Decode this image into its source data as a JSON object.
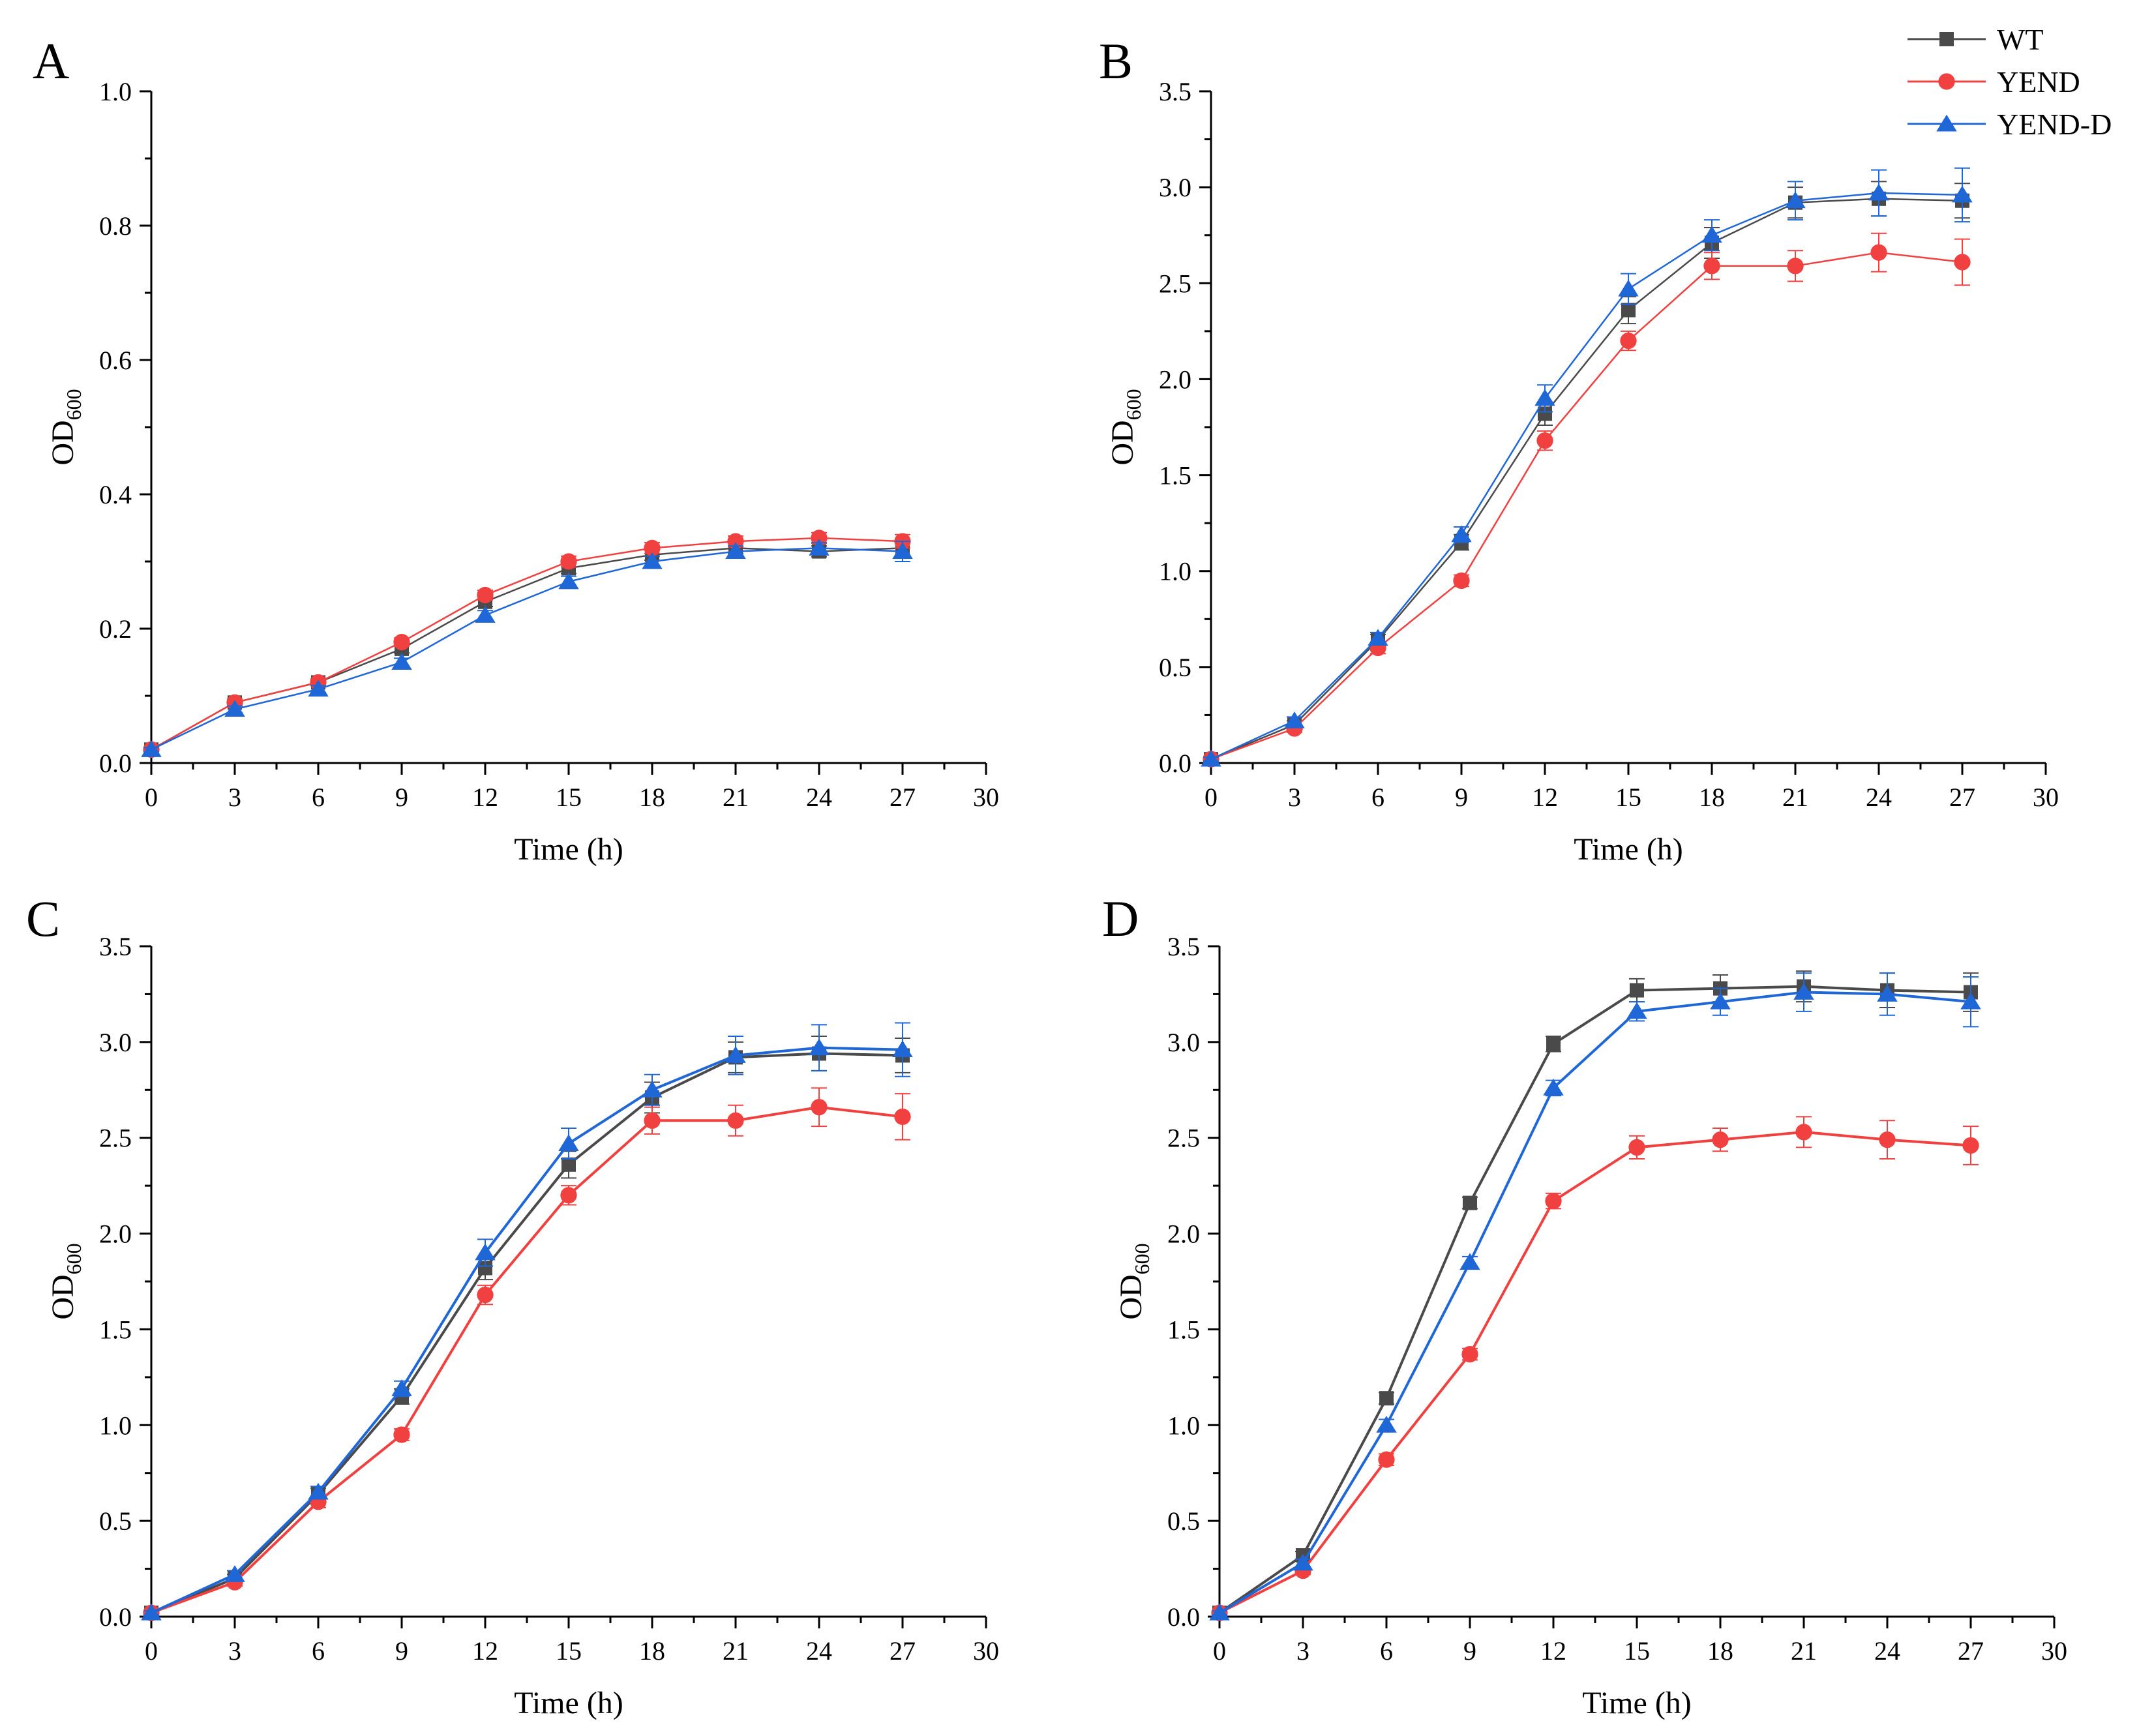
{
  "legend": {
    "entries": [
      {
        "name": "WT",
        "color": "#4a4a4a",
        "marker": "square"
      },
      {
        "name": "YEND",
        "color": "#f04040",
        "marker": "circle"
      },
      {
        "name": "YEND-D",
        "color": "#1f66d6",
        "marker": "triangle"
      }
    ]
  },
  "chart_data": [
    {
      "panel": "A",
      "type": "line",
      "xlabel": "Time (h)",
      "ylabel": "OD",
      "ylabel_sub": "600",
      "xlim": [
        0,
        30
      ],
      "ylim": [
        0,
        1.0
      ],
      "xticks": [
        0,
        3,
        6,
        9,
        12,
        15,
        18,
        21,
        24,
        27,
        30
      ],
      "yticks": [
        0.0,
        0.2,
        0.4,
        0.6,
        0.8,
        1.0
      ],
      "ytick_labels": [
        "0.0",
        "0.2",
        "0.4",
        "0.6",
        "0.8",
        "1.0"
      ],
      "x": [
        0,
        3,
        6,
        9,
        12,
        15,
        18,
        21,
        24,
        27
      ],
      "series": [
        {
          "name": "WT",
          "values": [
            0.02,
            0.09,
            0.12,
            0.17,
            0.24,
            0.29,
            0.31,
            0.32,
            0.315,
            0.32
          ],
          "errors": [
            0.003,
            0.005,
            0.005,
            0.006,
            0.007,
            0.008,
            0.008,
            0.008,
            0.008,
            0.01
          ]
        },
        {
          "name": "YEND",
          "values": [
            0.02,
            0.09,
            0.12,
            0.18,
            0.25,
            0.3,
            0.32,
            0.33,
            0.335,
            0.33
          ],
          "errors": [
            0.003,
            0.005,
            0.005,
            0.006,
            0.007,
            0.008,
            0.008,
            0.008,
            0.008,
            0.01
          ]
        },
        {
          "name": "YEND-D",
          "values": [
            0.02,
            0.08,
            0.11,
            0.15,
            0.22,
            0.27,
            0.3,
            0.315,
            0.32,
            0.315
          ],
          "errors": [
            0.003,
            0.005,
            0.005,
            0.006,
            0.007,
            0.008,
            0.008,
            0.008,
            0.008,
            0.015
          ]
        }
      ]
    },
    {
      "panel": "B",
      "type": "line",
      "xlabel": "Time (h)",
      "ylabel": "OD",
      "ylabel_sub": "600",
      "xlim": [
        0,
        30
      ],
      "ylim": [
        0,
        3.5
      ],
      "xticks": [
        0,
        3,
        6,
        9,
        12,
        15,
        18,
        21,
        24,
        27,
        30
      ],
      "yticks": [
        0.0,
        0.5,
        1.0,
        1.5,
        2.0,
        2.5,
        3.0,
        3.5
      ],
      "ytick_labels": [
        "0.0",
        "0.5",
        "1.0",
        "1.5",
        "2.0",
        "2.5",
        "3.0",
        "3.5"
      ],
      "x": [
        0,
        3,
        6,
        9,
        12,
        15,
        18,
        21,
        24,
        27
      ],
      "series": [
        {
          "name": "WT",
          "values": [
            0.02,
            0.2,
            0.64,
            1.15,
            1.82,
            2.36,
            2.71,
            2.92,
            2.94,
            2.93
          ],
          "errors": [
            0.01,
            0.02,
            0.03,
            0.04,
            0.06,
            0.07,
            0.08,
            0.08,
            0.09,
            0.09
          ]
        },
        {
          "name": "YEND",
          "values": [
            0.02,
            0.18,
            0.6,
            0.95,
            1.68,
            2.2,
            2.59,
            2.59,
            2.66,
            2.61
          ],
          "errors": [
            0.01,
            0.02,
            0.03,
            0.03,
            0.05,
            0.05,
            0.07,
            0.08,
            0.1,
            0.12
          ]
        },
        {
          "name": "YEND-D",
          "values": [
            0.02,
            0.22,
            0.65,
            1.19,
            1.9,
            2.47,
            2.75,
            2.93,
            2.97,
            2.96
          ],
          "errors": [
            0.01,
            0.02,
            0.03,
            0.04,
            0.07,
            0.08,
            0.08,
            0.1,
            0.12,
            0.14
          ]
        }
      ]
    },
    {
      "panel": "C",
      "type": "line",
      "xlabel": "Time (h)",
      "ylabel": "OD",
      "ylabel_sub": "600",
      "xlim": [
        0,
        30
      ],
      "ylim": [
        0,
        3.5
      ],
      "xticks": [
        0,
        3,
        6,
        9,
        12,
        15,
        18,
        21,
        24,
        27,
        30
      ],
      "yticks": [
        0.0,
        0.5,
        1.0,
        1.5,
        2.0,
        2.5,
        3.0,
        3.5
      ],
      "ytick_labels": [
        "0.0",
        "0.5",
        "1.0",
        "1.5",
        "2.0",
        "2.5",
        "3.0",
        "3.5"
      ],
      "x": [
        0,
        3,
        6,
        9,
        12,
        15,
        18,
        21,
        24,
        27
      ],
      "series": [
        {
          "name": "WT",
          "values": [
            0.02,
            0.2,
            0.64,
            1.15,
            1.82,
            2.36,
            2.71,
            2.92,
            2.94,
            2.93
          ],
          "errors": [
            0.01,
            0.02,
            0.03,
            0.04,
            0.06,
            0.07,
            0.08,
            0.08,
            0.09,
            0.09
          ]
        },
        {
          "name": "YEND",
          "values": [
            0.02,
            0.18,
            0.6,
            0.95,
            1.68,
            2.2,
            2.59,
            2.59,
            2.66,
            2.61
          ],
          "errors": [
            0.01,
            0.02,
            0.03,
            0.03,
            0.05,
            0.05,
            0.07,
            0.08,
            0.1,
            0.12
          ]
        },
        {
          "name": "YEND-D",
          "values": [
            0.02,
            0.22,
            0.65,
            1.19,
            1.9,
            2.47,
            2.75,
            2.93,
            2.97,
            2.96
          ],
          "errors": [
            0.01,
            0.02,
            0.03,
            0.04,
            0.07,
            0.08,
            0.08,
            0.1,
            0.12,
            0.14
          ]
        }
      ]
    },
    {
      "panel": "D",
      "type": "line",
      "xlabel": "Time (h)",
      "ylabel": "OD",
      "ylabel_sub": "600",
      "xlim": [
        0,
        30
      ],
      "ylim": [
        0,
        3.5
      ],
      "xticks": [
        0,
        3,
        6,
        9,
        12,
        15,
        18,
        21,
        24,
        27,
        30
      ],
      "yticks": [
        0.0,
        0.5,
        1.0,
        1.5,
        2.0,
        2.5,
        3.0,
        3.5
      ],
      "ytick_labels": [
        "0.0",
        "0.5",
        "1.0",
        "1.5",
        "2.0",
        "2.5",
        "3.0",
        "3.5"
      ],
      "x": [
        0,
        3,
        6,
        9,
        12,
        15,
        18,
        21,
        24,
        27
      ],
      "series": [
        {
          "name": "WT",
          "values": [
            0.02,
            0.32,
            1.14,
            2.16,
            2.99,
            3.27,
            3.28,
            3.29,
            3.27,
            3.26
          ],
          "errors": [
            0.01,
            0.02,
            0.03,
            0.03,
            0.04,
            0.06,
            0.07,
            0.08,
            0.09,
            0.1
          ]
        },
        {
          "name": "YEND",
          "values": [
            0.02,
            0.24,
            0.82,
            1.37,
            2.17,
            2.45,
            2.49,
            2.53,
            2.49,
            2.46
          ],
          "errors": [
            0.01,
            0.02,
            0.03,
            0.03,
            0.04,
            0.06,
            0.06,
            0.08,
            0.1,
            0.1
          ]
        },
        {
          "name": "YEND-D",
          "values": [
            0.02,
            0.28,
            1.0,
            1.85,
            2.76,
            3.16,
            3.21,
            3.26,
            3.25,
            3.21
          ],
          "errors": [
            0.01,
            0.02,
            0.03,
            0.03,
            0.04,
            0.05,
            0.07,
            0.1,
            0.11,
            0.13
          ]
        }
      ]
    }
  ]
}
